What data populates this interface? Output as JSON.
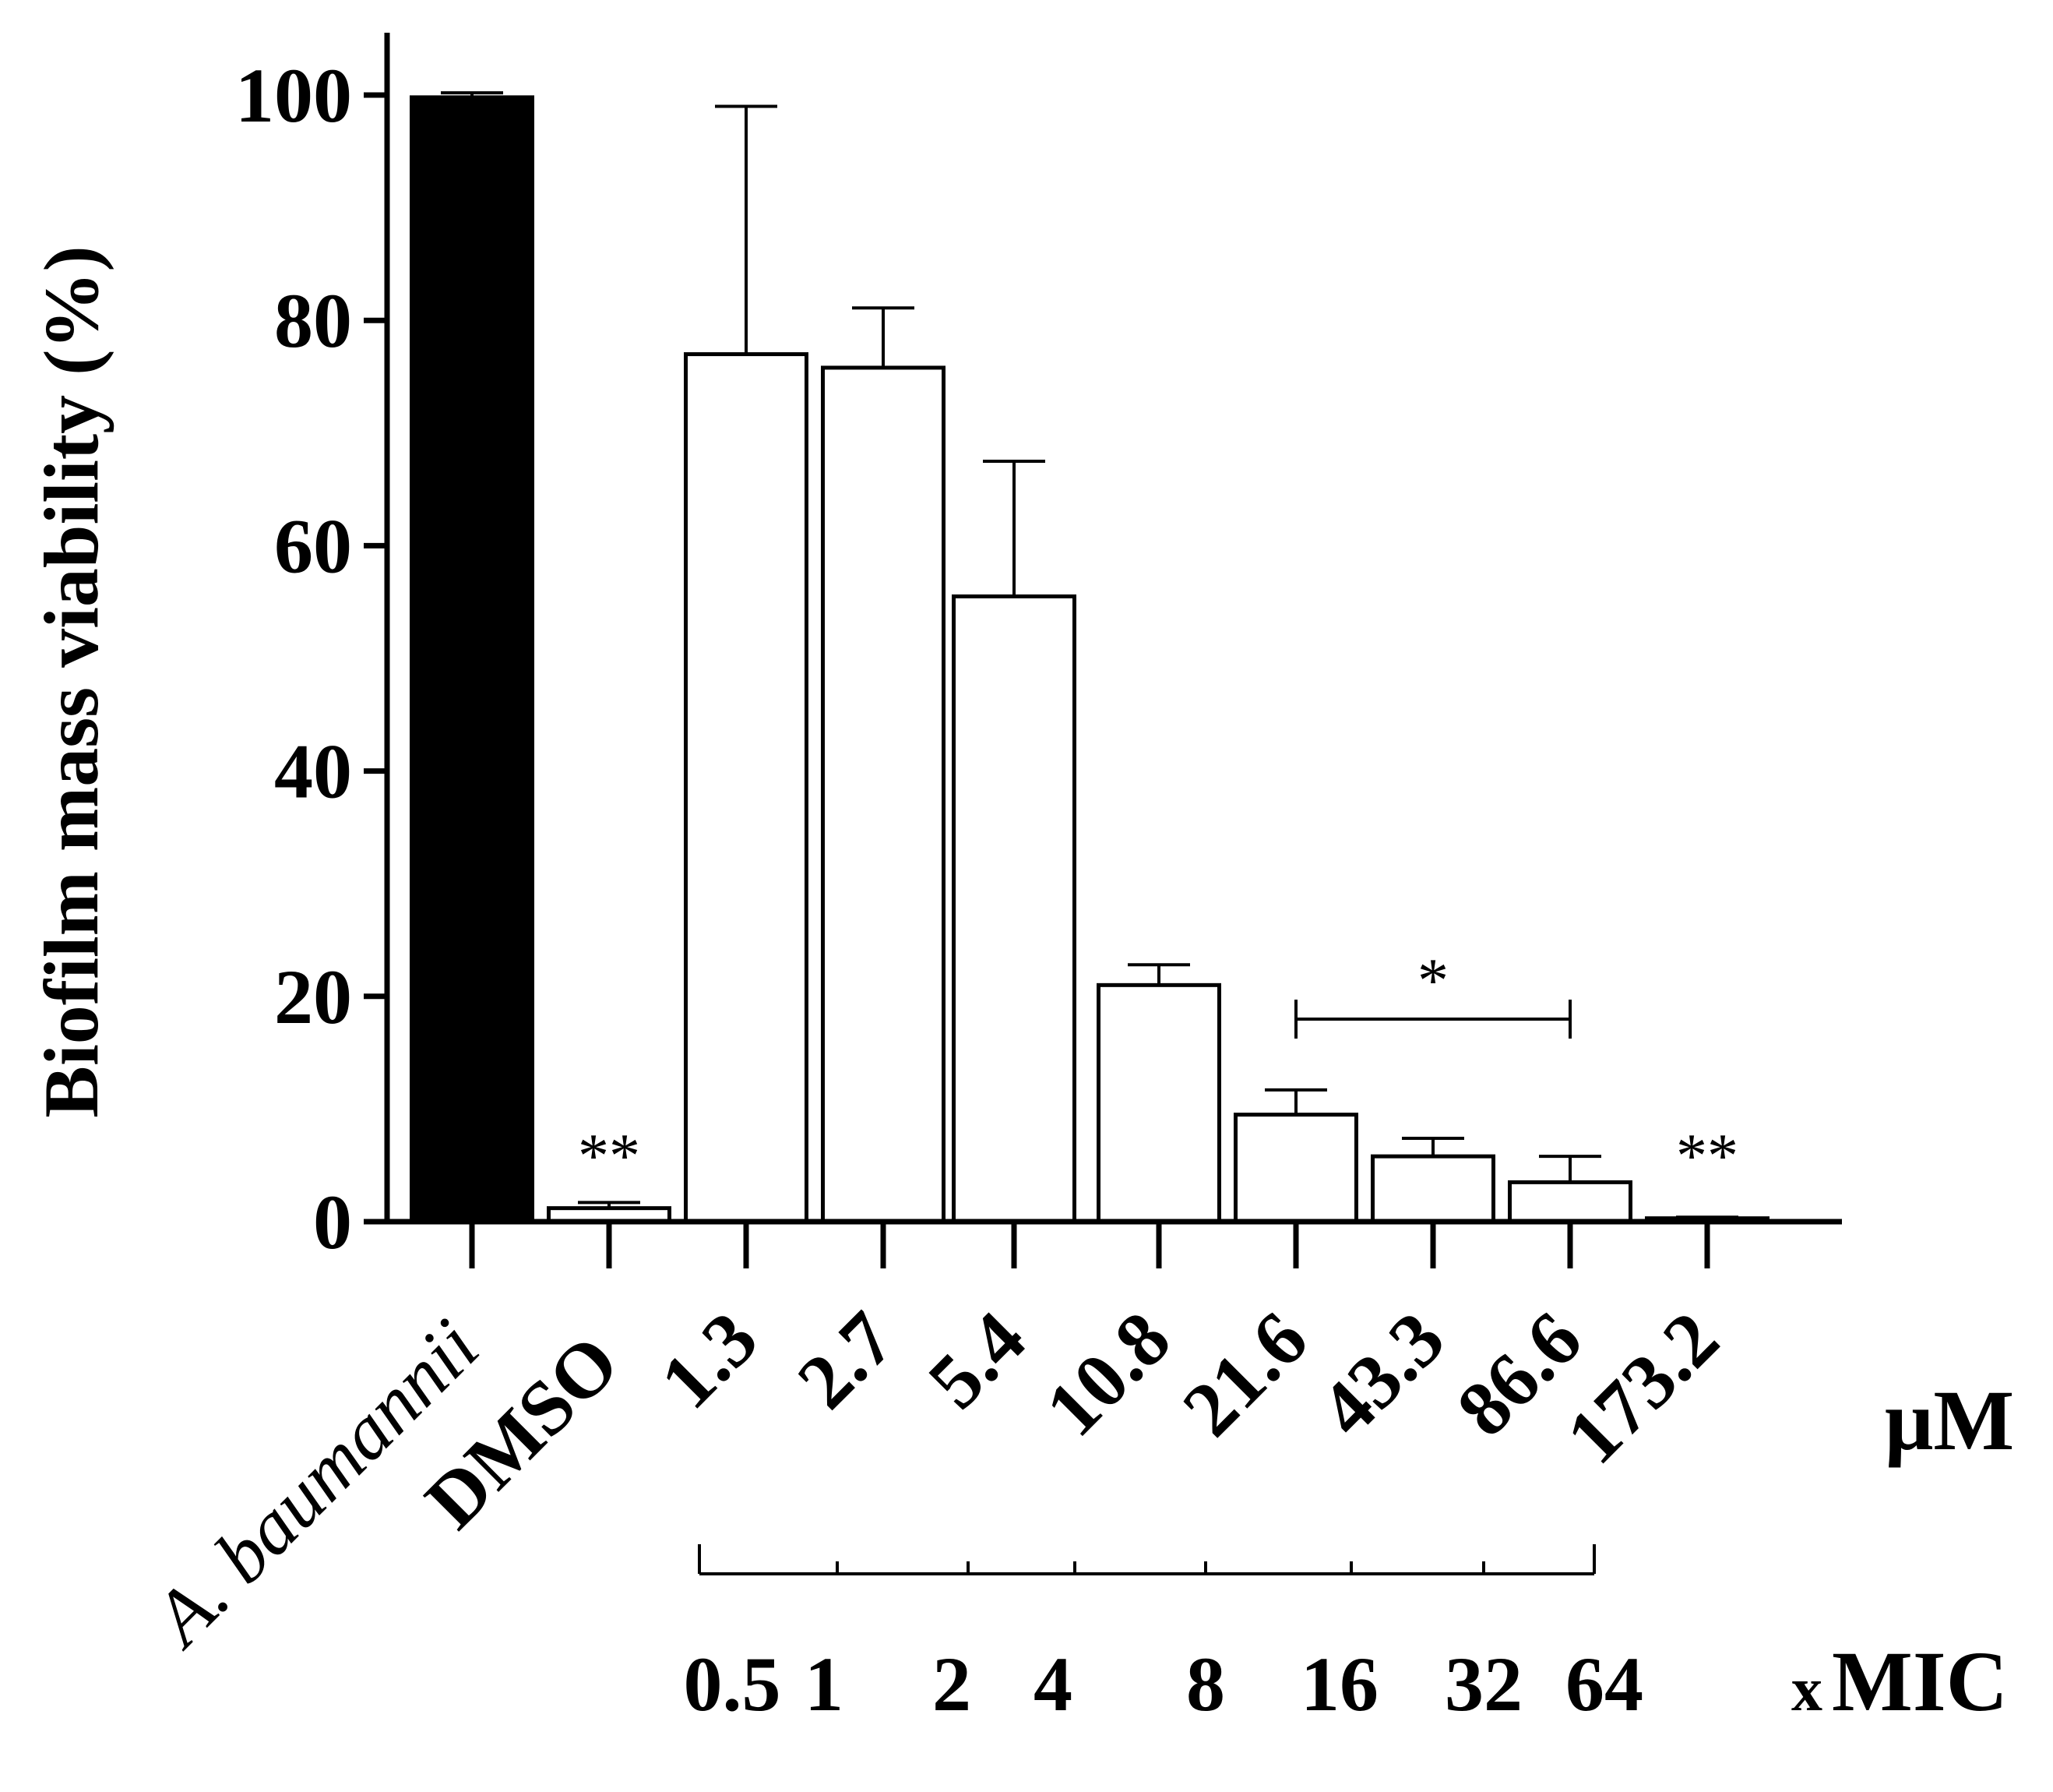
{
  "chart_data": {
    "type": "bar",
    "ylabel": "Biofilm mass viability (%)",
    "ylim": [
      0,
      105
    ],
    "yticks": [
      0,
      20,
      40,
      60,
      80,
      100
    ],
    "categories": [
      "A. baumannii",
      "DMSO",
      "1.3",
      "2.7",
      "5.4",
      "10.8",
      "21.6",
      "43.3",
      "86.6",
      "173.2"
    ],
    "values": [
      99.8,
      1.2,
      77,
      75.8,
      55.5,
      21,
      9.5,
      5.8,
      3.5,
      0.3
    ],
    "errors": [
      0.4,
      0.5,
      22,
      5.3,
      12,
      1.8,
      2.2,
      1.6,
      2.3,
      0.1
    ],
    "fills": [
      "#000000",
      "#ffffff",
      "#ffffff",
      "#ffffff",
      "#ffffff",
      "#ffffff",
      "#ffffff",
      "#ffffff",
      "#ffffff",
      "#ffffff"
    ],
    "significance": [
      {
        "category": "DMSO",
        "label": "**"
      },
      {
        "category": "173.2",
        "label": "**"
      }
    ],
    "bracket": {
      "from": "21.6",
      "to": "86.6",
      "label": "*"
    },
    "concentration_unit": "μM",
    "mic_values": [
      "0.5",
      "1",
      "2",
      "4",
      "8",
      "16",
      "32",
      "64"
    ],
    "mic_label_prefix": "x",
    "mic_label": "MIC"
  }
}
